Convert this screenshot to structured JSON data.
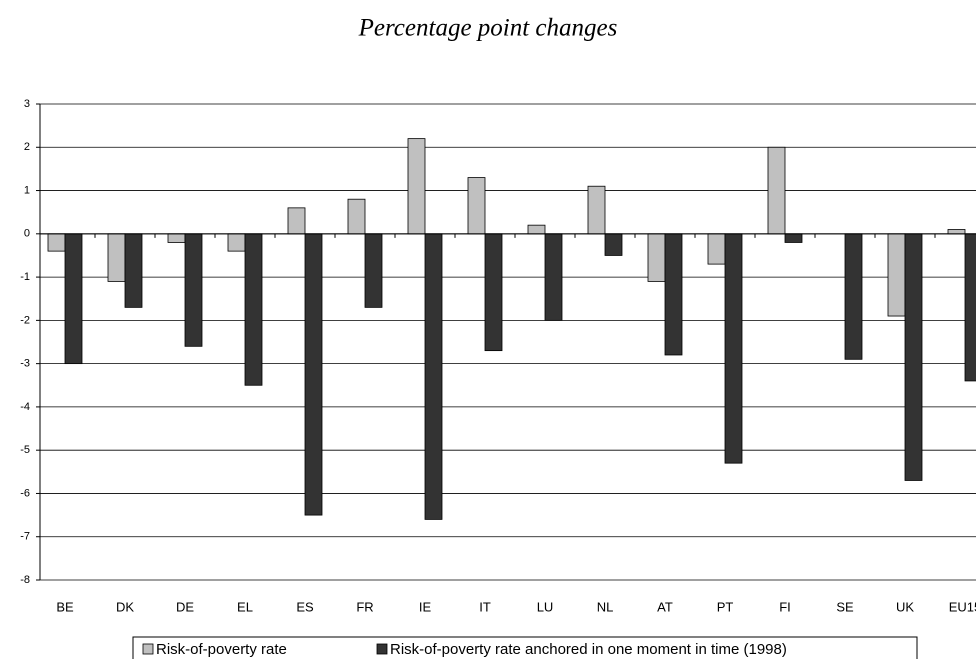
{
  "chart_data": {
    "type": "bar",
    "title": "Percentage point changes",
    "categories": [
      "BE",
      "DK",
      "DE",
      "EL",
      "ES",
      "FR",
      "IE",
      "IT",
      "LU",
      "NL",
      "AT",
      "PT",
      "FI",
      "SE",
      "UK",
      "EU15"
    ],
    "series": [
      {
        "name": "Risk-of-poverty rate",
        "color": "#c0c0c0",
        "values": [
          -0.4,
          -1.1,
          -0.2,
          -0.4,
          0.6,
          0.8,
          2.2,
          1.3,
          0.2,
          1.1,
          -1.1,
          -0.7,
          2.0,
          0,
          -1.9,
          0.1
        ]
      },
      {
        "name": "Risk-of-poverty rate anchored in one moment in time (1998)",
        "color": "#333333",
        "values": [
          -3.0,
          -1.7,
          -2.6,
          -3.5,
          -6.5,
          -1.7,
          -6.6,
          -2.7,
          -2.0,
          -0.5,
          -2.8,
          -5.3,
          -0.2,
          -2.9,
          -5.7,
          -3.4
        ]
      }
    ],
    "ylim": [
      -8,
      3
    ],
    "yticks": [
      -8,
      -7,
      -6,
      -5,
      -4,
      -3,
      -2,
      -1,
      0,
      1,
      2,
      3
    ],
    "grid": true
  }
}
